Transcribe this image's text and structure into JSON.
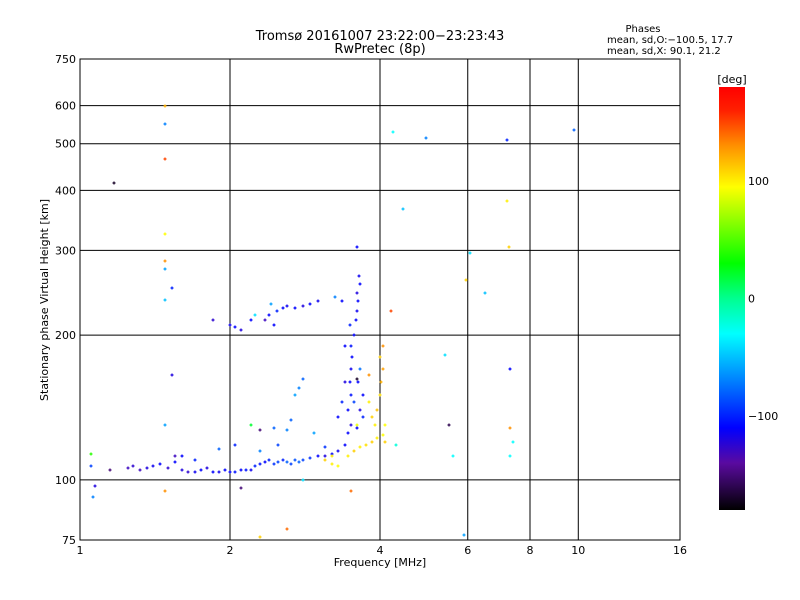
{
  "chart_data": {
    "type": "scatter",
    "title": "Tromsø 20161007 23:22:00−23:23:43",
    "subtitle": "RwPretec (8p)",
    "xlabel": "Frequency [MHz]",
    "ylabel": "Stationary phase Virtual Height [km]",
    "xscale": "log",
    "yscale": "log",
    "xlim": [
      1,
      16
    ],
    "ylim": [
      75,
      750
    ],
    "x_ticks": [
      "1",
      "2",
      "4",
      "6",
      "8",
      "10",
      "16"
    ],
    "x_tick_values": [
      1,
      2,
      4,
      6,
      8,
      10,
      16
    ],
    "y_ticks": [
      "75",
      "100",
      "200",
      "300",
      "400",
      "500",
      "600",
      "750"
    ],
    "y_tick_values": [
      75,
      100,
      200,
      300,
      400,
      500,
      600,
      750
    ],
    "grid": true,
    "stats": {
      "heading": "Phases",
      "line_o": "mean, sd,O:−100.5, 17.7",
      "line_x": "mean, sd,X:  90.1, 21.2"
    },
    "colorbar": {
      "label": "[deg]",
      "range": [
        -180,
        180
      ],
      "ticks": [
        "100",
        "0",
        "−100"
      ],
      "tick_values": [
        100,
        0,
        -100
      ],
      "stops": [
        [
          -180,
          "#000000"
        ],
        [
          -140,
          "#5a0aa0"
        ],
        [
          -110,
          "#0000ff"
        ],
        [
          -60,
          "#00a0ff"
        ],
        [
          -30,
          "#00ffff"
        ],
        [
          0,
          "#00ff90"
        ],
        [
          30,
          "#00ff00"
        ],
        [
          95,
          "#ffff00"
        ],
        [
          130,
          "#ff9000"
        ],
        [
          160,
          "#ff2000"
        ],
        [
          180,
          "#ff0000"
        ]
      ]
    },
    "point_fields": [
      "frequency_MHz",
      "height_km",
      "phase_deg"
    ],
    "points": [
      [
        1.25,
        106,
        -130
      ],
      [
        1.28,
        107,
        -125
      ],
      [
        1.32,
        105,
        -130
      ],
      [
        1.36,
        106,
        -120
      ],
      [
        1.4,
        107,
        -115
      ],
      [
        1.45,
        108,
        -110
      ],
      [
        1.5,
        106,
        -125
      ],
      [
        1.55,
        109,
        -110
      ],
      [
        1.6,
        105,
        -120
      ],
      [
        1.65,
        104,
        -125
      ],
      [
        1.7,
        104,
        -115
      ],
      [
        1.75,
        105,
        -110
      ],
      [
        1.8,
        106,
        -120
      ],
      [
        1.85,
        104,
        -110
      ],
      [
        1.9,
        104,
        -115
      ],
      [
        1.95,
        105,
        -110
      ],
      [
        2.0,
        104,
        -110
      ],
      [
        2.05,
        104,
        -105
      ],
      [
        2.1,
        105,
        -110
      ],
      [
        2.15,
        105,
        -105
      ],
      [
        2.2,
        105,
        -115
      ],
      [
        2.25,
        107,
        -100
      ],
      [
        2.3,
        108,
        -105
      ],
      [
        2.35,
        109,
        -110
      ],
      [
        2.4,
        110,
        -100
      ],
      [
        2.45,
        108,
        -95
      ],
      [
        2.5,
        109,
        -90
      ],
      [
        2.55,
        110,
        -100
      ],
      [
        2.6,
        109,
        -80
      ],
      [
        2.65,
        108,
        -90
      ],
      [
        2.7,
        110,
        -85
      ],
      [
        2.75,
        109,
        -80
      ],
      [
        2.8,
        110,
        -90
      ],
      [
        2.9,
        111,
        -95
      ],
      [
        3.0,
        112,
        -110
      ],
      [
        3.1,
        112,
        -120
      ],
      [
        3.2,
        113,
        -110
      ],
      [
        3.3,
        115,
        -115
      ],
      [
        3.4,
        118,
        -110
      ],
      [
        1.6,
        112,
        -110
      ],
      [
        1.7,
        110,
        -100
      ],
      [
        1.9,
        116,
        -80
      ],
      [
        2.05,
        118,
        -100
      ],
      [
        2.3,
        115,
        -70
      ],
      [
        2.5,
        118,
        -90
      ],
      [
        2.6,
        127,
        -70
      ],
      [
        2.65,
        133,
        -80
      ],
      [
        2.7,
        150,
        -60
      ],
      [
        2.75,
        155,
        -70
      ],
      [
        2.8,
        162,
        -80
      ],
      [
        2.95,
        125,
        -60
      ],
      [
        3.1,
        117,
        -95
      ],
      [
        3.45,
        125,
        -110
      ],
      [
        3.5,
        130,
        -120
      ],
      [
        3.45,
        140,
        -110
      ],
      [
        3.5,
        150,
        -105
      ],
      [
        3.48,
        160,
        -110
      ],
      [
        3.5,
        170,
        -115
      ],
      [
        3.52,
        180,
        -110
      ],
      [
        3.5,
        190,
        -105
      ],
      [
        3.55,
        200,
        -110
      ],
      [
        3.48,
        210,
        -100
      ],
      [
        3.58,
        215,
        -110
      ],
      [
        3.6,
        225,
        -115
      ],
      [
        3.62,
        235,
        -110
      ],
      [
        3.6,
        245,
        -120
      ],
      [
        3.65,
        255,
        -110
      ],
      [
        3.63,
        265,
        -115
      ],
      [
        3.6,
        305,
        -110
      ],
      [
        3.65,
        140,
        -120
      ],
      [
        3.7,
        150,
        -110
      ],
      [
        3.7,
        135,
        -100
      ],
      [
        3.6,
        128,
        -110
      ],
      [
        3.55,
        145,
        -90
      ],
      [
        3.62,
        160,
        -110
      ],
      [
        3.65,
        170,
        -75
      ],
      [
        3.3,
        135,
        -110
      ],
      [
        3.35,
        145,
        -100
      ],
      [
        3.4,
        160,
        -120
      ],
      [
        3.4,
        190,
        -110
      ],
      [
        3.35,
        235,
        -110
      ],
      [
        3.25,
        240,
        -70
      ],
      [
        1.85,
        215,
        -125
      ],
      [
        2.0,
        210,
        -115
      ],
      [
        2.05,
        208,
        -110
      ],
      [
        2.1,
        205,
        -120
      ],
      [
        2.2,
        215,
        -110
      ],
      [
        2.35,
        215,
        -130
      ],
      [
        2.4,
        220,
        -110
      ],
      [
        2.42,
        232,
        -60
      ],
      [
        2.48,
        225,
        -100
      ],
      [
        2.55,
        228,
        -110
      ],
      [
        2.6,
        230,
        -115
      ],
      [
        2.7,
        228,
        -110
      ],
      [
        2.8,
        230,
        -120
      ],
      [
        2.9,
        232,
        -110
      ],
      [
        3.0,
        235,
        -115
      ],
      [
        2.45,
        210,
        -110
      ],
      [
        2.25,
        220,
        -40
      ],
      [
        3.1,
        110,
        110
      ],
      [
        3.2,
        108,
        100
      ],
      [
        3.3,
        107,
        95
      ],
      [
        3.45,
        112,
        100
      ],
      [
        3.55,
        115,
        110
      ],
      [
        3.65,
        117,
        100
      ],
      [
        3.75,
        118,
        105
      ],
      [
        3.85,
        120,
        110
      ],
      [
        3.95,
        122,
        100
      ],
      [
        4.05,
        124,
        95
      ],
      [
        4.1,
        120,
        110
      ],
      [
        3.9,
        130,
        100
      ],
      [
        3.95,
        140,
        115
      ],
      [
        4.0,
        150,
        105
      ],
      [
        4.02,
        160,
        120
      ],
      [
        4.05,
        170,
        125
      ],
      [
        4.0,
        180,
        110
      ],
      [
        4.05,
        190,
        130
      ],
      [
        3.8,
        145,
        100
      ],
      [
        3.85,
        135,
        110
      ],
      [
        3.6,
        130,
        90
      ],
      [
        3.2,
        112,
        100
      ],
      [
        4.1,
        130,
        95
      ],
      [
        1.05,
        113,
        40
      ],
      [
        1.05,
        107,
        -90
      ],
      [
        1.06,
        92,
        -70
      ],
      [
        1.07,
        97,
        -120
      ],
      [
        1.15,
        105,
        -150
      ],
      [
        1.17,
        415,
        -170
      ],
      [
        1.48,
        600,
        120
      ],
      [
        1.48,
        550,
        -70
      ],
      [
        1.48,
        465,
        150
      ],
      [
        1.48,
        325,
        95
      ],
      [
        1.48,
        285,
        130
      ],
      [
        1.48,
        275,
        -60
      ],
      [
        1.48,
        237,
        -50
      ],
      [
        1.53,
        250,
        -100
      ],
      [
        1.53,
        165,
        -120
      ],
      [
        1.48,
        130,
        -60
      ],
      [
        1.48,
        95,
        130
      ],
      [
        1.55,
        112,
        -130
      ],
      [
        2.2,
        130,
        20
      ],
      [
        2.3,
        127,
        -150
      ],
      [
        2.45,
        128,
        -80
      ],
      [
        2.1,
        96,
        -150
      ],
      [
        2.3,
        76,
        110
      ],
      [
        2.6,
        79,
        140
      ],
      [
        2.8,
        100,
        -40
      ],
      [
        3.5,
        95,
        140
      ],
      [
        3.6,
        162,
        -170
      ],
      [
        3.8,
        165,
        130
      ],
      [
        4.2,
        225,
        150
      ],
      [
        4.25,
        530,
        -30
      ],
      [
        4.3,
        118,
        -20
      ],
      [
        4.45,
        365,
        -50
      ],
      [
        4.95,
        515,
        -70
      ],
      [
        5.4,
        182,
        -40
      ],
      [
        5.5,
        130,
        -160
      ],
      [
        5.6,
        112,
        -30
      ],
      [
        5.95,
        260,
        110
      ],
      [
        6.05,
        297,
        -40
      ],
      [
        6.5,
        245,
        -50
      ],
      [
        7.2,
        510,
        -100
      ],
      [
        7.2,
        380,
        100
      ],
      [
        7.25,
        305,
        110
      ],
      [
        7.3,
        170,
        -110
      ],
      [
        7.3,
        128,
        130
      ],
      [
        7.4,
        120,
        -30
      ],
      [
        7.3,
        112,
        -30
      ],
      [
        9.8,
        535,
        -80
      ],
      [
        5.9,
        77,
        -60
      ]
    ]
  }
}
